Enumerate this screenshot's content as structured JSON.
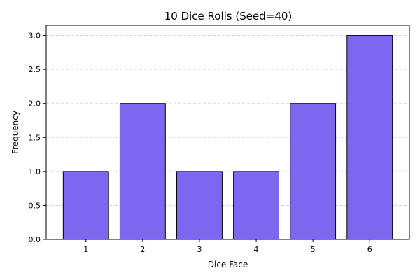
{
  "chart_data": {
    "type": "bar",
    "title": "10 Dice Rolls (Seed=40)",
    "xlabel": "Dice Face",
    "ylabel": "Frequency",
    "categories": [
      "1",
      "2",
      "3",
      "4",
      "5",
      "6"
    ],
    "values": [
      1,
      2,
      1,
      1,
      2,
      3
    ],
    "ylim": [
      0,
      3.15
    ],
    "yticks": [
      "0.0",
      "0.5",
      "1.0",
      "1.5",
      "2.0",
      "2.5",
      "3.0"
    ],
    "grid": "y-dashed",
    "bar_color": "#7B68EE",
    "edge_color": "#000000"
  }
}
